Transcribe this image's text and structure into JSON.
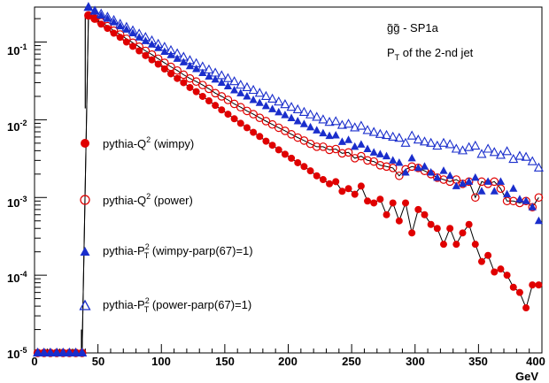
{
  "chart_data": {
    "type": "scatter",
    "title": {
      "process_main": "g̃g̃",
      "process_rest": " - SP1a",
      "subtitle_base": "P",
      "subtitle_sub": "T",
      "subtitle_rest": " of the 2-nd jet"
    },
    "xlabel": "GeV",
    "x_tick_labels": [
      "0",
      "50",
      "100",
      "150",
      "200",
      "250",
      "300",
      "350",
      "400"
    ],
    "y_tick_labels": [
      {
        "base": "10",
        "exp": "-5"
      },
      {
        "base": "10",
        "exp": "-4"
      },
      {
        "base": "10",
        "exp": "-3"
      },
      {
        "base": "10",
        "exp": "-2"
      },
      {
        "base": "10",
        "exp": "-1"
      }
    ],
    "xlim": [
      0,
      400
    ],
    "ylim_log10": [
      -5,
      -0.55
    ],
    "y_scale": "log",
    "legend_placement": "left",
    "legend": [
      {
        "pre": "pythia-Q",
        "sup": "2",
        "sub": "",
        "post": " (wimpy)"
      },
      {
        "pre": "pythia-Q",
        "sup": "2",
        "sub": "",
        "post": " (power)"
      },
      {
        "pre": "pythia-P",
        "sup": "2",
        "sub": "T",
        "post": " (wimpy-parp(67)=1)"
      },
      {
        "pre": "pythia-P",
        "sup": "2",
        "sub": "T",
        "post": " (power-parp(67)=1)"
      }
    ],
    "series": [
      {
        "marker": "circle-filled",
        "color": "#e00000",
        "line": true,
        "x": [
          2.5,
          7.5,
          12.5,
          17.5,
          22.5,
          27.5,
          32.5,
          37.5,
          42.5,
          47.5,
          52.5,
          57.5,
          62.5,
          67.5,
          72.5,
          77.5,
          82.5,
          87.5,
          92.5,
          97.5,
          102.5,
          107.5,
          112.5,
          117.5,
          122.5,
          127.5,
          132.5,
          137.5,
          142.5,
          147.5,
          152.5,
          157.5,
          162.5,
          167.5,
          172.5,
          177.5,
          182.5,
          187.5,
          192.5,
          197.5,
          202.5,
          207.5,
          212.5,
          217.5,
          222.5,
          227.5,
          232.5,
          237.5,
          242.5,
          247.5,
          252.5,
          257.5,
          262.5,
          267.5,
          272.5,
          277.5,
          282.5,
          287.5,
          292.5,
          297.5,
          302.5,
          307.5,
          312.5,
          317.5,
          322.5,
          327.5,
          332.5,
          337.5,
          342.5,
          347.5,
          352.5,
          357.5,
          362.5,
          367.5,
          372.5,
          377.5,
          382.5,
          387.5,
          392.5,
          397.5
        ],
        "y": [
          1e-05,
          1e-05,
          1e-05,
          1e-05,
          1e-05,
          1e-05,
          1e-05,
          1e-05,
          0.22,
          0.2,
          0.17,
          0.15,
          0.13,
          0.115,
          0.1,
          0.088,
          0.077,
          0.067,
          0.059,
          0.052,
          0.045,
          0.039,
          0.034,
          0.03,
          0.026,
          0.023,
          0.02,
          0.0175,
          0.0153,
          0.0134,
          0.0118,
          0.0103,
          0.009,
          0.0079,
          0.0069,
          0.0061,
          0.0053,
          0.0047,
          0.0041,
          0.0036,
          0.0032,
          0.0028,
          0.0025,
          0.0022,
          0.0019,
          0.0017,
          0.0015,
          0.0016,
          0.0012,
          0.0013,
          0.0011,
          0.0014,
          0.0009,
          0.00085,
          0.00095,
          0.0006,
          0.00085,
          0.0005,
          0.00085,
          0.00035,
          0.0007,
          0.0006,
          0.00045,
          0.0004,
          0.00025,
          0.0004,
          0.00025,
          0.00035,
          0.00045,
          0.00025,
          0.00015,
          0.00018,
          0.00011,
          0.00012,
          0.0001,
          7e-05,
          6e-05,
          3.8e-05,
          7.5e-05,
          7.5e-05
        ]
      },
      {
        "marker": "circle-open",
        "color": "#e00000",
        "line": true,
        "x": [
          2.5,
          7.5,
          12.5,
          17.5,
          22.5,
          27.5,
          32.5,
          37.5,
          42.5,
          47.5,
          52.5,
          57.5,
          62.5,
          67.5,
          72.5,
          77.5,
          82.5,
          87.5,
          92.5,
          97.5,
          102.5,
          107.5,
          112.5,
          117.5,
          122.5,
          127.5,
          132.5,
          137.5,
          142.5,
          147.5,
          152.5,
          157.5,
          162.5,
          167.5,
          172.5,
          177.5,
          182.5,
          187.5,
          192.5,
          197.5,
          202.5,
          207.5,
          212.5,
          217.5,
          222.5,
          227.5,
          232.5,
          237.5,
          242.5,
          247.5,
          252.5,
          257.5,
          262.5,
          267.5,
          272.5,
          277.5,
          282.5,
          287.5,
          292.5,
          297.5,
          302.5,
          307.5,
          312.5,
          317.5,
          322.5,
          327.5,
          332.5,
          337.5,
          342.5,
          347.5,
          352.5,
          357.5,
          362.5,
          367.5,
          372.5,
          377.5,
          382.5,
          387.5,
          392.5,
          397.5
        ],
        "y": [
          1e-05,
          1e-05,
          1e-05,
          1e-05,
          1e-05,
          1e-05,
          1e-05,
          1e-05,
          0.22,
          0.2,
          0.18,
          0.16,
          0.14,
          0.125,
          0.11,
          0.098,
          0.087,
          0.077,
          0.069,
          0.061,
          0.054,
          0.048,
          0.043,
          0.038,
          0.034,
          0.031,
          0.028,
          0.025,
          0.022,
          0.02,
          0.018,
          0.016,
          0.0145,
          0.013,
          0.0118,
          0.0106,
          0.0096,
          0.0087,
          0.0079,
          0.0072,
          0.0065,
          0.0059,
          0.0054,
          0.0049,
          0.0045,
          0.0045,
          0.0041,
          0.0042,
          0.0037,
          0.0038,
          0.0032,
          0.0034,
          0.003,
          0.0029,
          0.0026,
          0.0025,
          0.0024,
          0.0019,
          0.0023,
          0.0025,
          0.0024,
          0.0022,
          0.002,
          0.0018,
          0.0017,
          0.0016,
          0.0017,
          0.0015,
          0.0016,
          0.001,
          0.0016,
          0.0015,
          0.0016,
          0.0013,
          0.0009,
          0.0009,
          0.00085,
          0.0009,
          0.00075,
          0.001
        ]
      },
      {
        "marker": "triangle-filled",
        "color": "#1a2ecc",
        "line": false,
        "x": [
          2.5,
          7.5,
          12.5,
          17.5,
          22.5,
          27.5,
          32.5,
          37.5,
          42.5,
          47.5,
          52.5,
          57.5,
          62.5,
          67.5,
          72.5,
          77.5,
          82.5,
          87.5,
          92.5,
          97.5,
          102.5,
          107.5,
          112.5,
          117.5,
          122.5,
          127.5,
          132.5,
          137.5,
          142.5,
          147.5,
          152.5,
          157.5,
          162.5,
          167.5,
          172.5,
          177.5,
          182.5,
          187.5,
          192.5,
          197.5,
          202.5,
          207.5,
          212.5,
          217.5,
          222.5,
          227.5,
          232.5,
          237.5,
          242.5,
          247.5,
          252.5,
          257.5,
          262.5,
          267.5,
          272.5,
          277.5,
          282.5,
          287.5,
          292.5,
          297.5,
          302.5,
          307.5,
          312.5,
          317.5,
          322.5,
          327.5,
          332.5,
          337.5,
          342.5,
          347.5,
          352.5,
          357.5,
          362.5,
          367.5,
          372.5,
          377.5,
          382.5,
          387.5,
          392.5,
          397.5
        ],
        "y": [
          1e-05,
          1e-05,
          1e-05,
          1e-05,
          1e-05,
          1e-05,
          1e-05,
          1e-05,
          0.28,
          0.25,
          0.22,
          0.2,
          0.18,
          0.16,
          0.145,
          0.13,
          0.115,
          0.103,
          0.093,
          0.084,
          0.075,
          0.068,
          0.061,
          0.055,
          0.049,
          0.045,
          0.04,
          0.036,
          0.033,
          0.03,
          0.027,
          0.024,
          0.022,
          0.02,
          0.018,
          0.0165,
          0.015,
          0.0137,
          0.0125,
          0.0115,
          0.0105,
          0.0096,
          0.0088,
          0.008,
          0.0073,
          0.0067,
          0.0062,
          0.0063,
          0.0052,
          0.0055,
          0.0045,
          0.0048,
          0.0042,
          0.0038,
          0.0036,
          0.0034,
          0.003,
          0.0028,
          0.0021,
          0.0032,
          0.0024,
          0.0025,
          0.0021,
          0.0018,
          0.0022,
          0.0019,
          0.0014,
          0.0015,
          0.0016,
          0.0018,
          0.0012,
          0.0016,
          0.0012,
          0.0016,
          0.0011,
          0.0013,
          0.00095,
          0.0009,
          0.00075,
          0.0005
        ]
      },
      {
        "marker": "triangle-open",
        "color": "#1a2ecc",
        "line": false,
        "x": [
          2.5,
          7.5,
          12.5,
          17.5,
          22.5,
          27.5,
          32.5,
          37.5,
          42.5,
          47.5,
          52.5,
          57.5,
          62.5,
          67.5,
          72.5,
          77.5,
          82.5,
          87.5,
          92.5,
          97.5,
          102.5,
          107.5,
          112.5,
          117.5,
          122.5,
          127.5,
          132.5,
          137.5,
          142.5,
          147.5,
          152.5,
          157.5,
          162.5,
          167.5,
          172.5,
          177.5,
          182.5,
          187.5,
          192.5,
          197.5,
          202.5,
          207.5,
          212.5,
          217.5,
          222.5,
          227.5,
          232.5,
          237.5,
          242.5,
          247.5,
          252.5,
          257.5,
          262.5,
          267.5,
          272.5,
          277.5,
          282.5,
          287.5,
          292.5,
          297.5,
          302.5,
          307.5,
          312.5,
          317.5,
          322.5,
          327.5,
          332.5,
          337.5,
          342.5,
          347.5,
          352.5,
          357.5,
          362.5,
          367.5,
          372.5,
          377.5,
          382.5,
          387.5,
          392.5,
          397.5
        ],
        "y": [
          1e-05,
          1e-05,
          1e-05,
          1e-05,
          1e-05,
          1e-05,
          1e-05,
          1e-05,
          0.28,
          0.25,
          0.23,
          0.21,
          0.19,
          0.17,
          0.155,
          0.14,
          0.127,
          0.115,
          0.104,
          0.094,
          0.086,
          0.078,
          0.071,
          0.064,
          0.058,
          0.053,
          0.048,
          0.044,
          0.04,
          0.037,
          0.034,
          0.031,
          0.028,
          0.026,
          0.024,
          0.022,
          0.02,
          0.0185,
          0.017,
          0.0157,
          0.0145,
          0.0135,
          0.0125,
          0.0116,
          0.0108,
          0.01,
          0.0093,
          0.0095,
          0.0085,
          0.0088,
          0.0079,
          0.0083,
          0.0073,
          0.0069,
          0.0065,
          0.0063,
          0.006,
          0.0058,
          0.005,
          0.0062,
          0.0055,
          0.0052,
          0.005,
          0.0046,
          0.005,
          0.0048,
          0.0042,
          0.004,
          0.0044,
          0.0046,
          0.0036,
          0.0042,
          0.0038,
          0.0035,
          0.0039,
          0.0031,
          0.0034,
          0.0033,
          0.0029,
          0.0024
        ]
      }
    ]
  }
}
